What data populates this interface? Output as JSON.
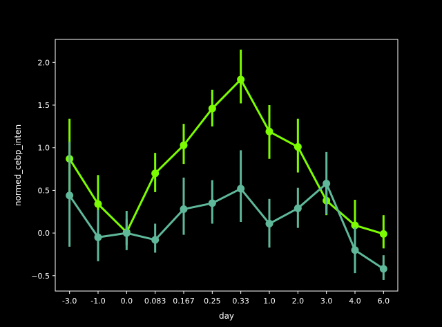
{
  "chart_data": {
    "type": "line",
    "title": "",
    "xlabel": "day",
    "ylabel": "normed_cebp_inten",
    "categories": [
      "-3.0",
      "-1.0",
      "0.0",
      "0.083",
      "0.167",
      "0.25",
      "0.33",
      "1.0",
      "2.0",
      "3.0",
      "4.0",
      "6.0"
    ],
    "ylim": [
      -0.68,
      2.27
    ],
    "yticks": [
      -0.5,
      0.0,
      0.5,
      1.0,
      1.5,
      2.0
    ],
    "ytick_labels": [
      "−0.5",
      "0.0",
      "0.5",
      "1.0",
      "1.5",
      "2.0"
    ],
    "grid": false,
    "legend": "none",
    "series": [
      {
        "color": "#7cfc00",
        "values": [
          0.87,
          0.34,
          0.01,
          0.7,
          1.03,
          1.46,
          1.8,
          1.19,
          1.01,
          0.38,
          0.09,
          -0.01
        ],
        "err_low": [
          0.48,
          0.1,
          -0.14,
          0.48,
          0.81,
          1.25,
          1.52,
          0.87,
          0.71,
          0.21,
          -0.12,
          -0.18
        ],
        "err_high": [
          1.34,
          0.68,
          0.16,
          0.94,
          1.28,
          1.68,
          2.15,
          1.5,
          1.34,
          0.55,
          0.39,
          0.21
        ]
      },
      {
        "color": "#5fb89a",
        "values": [
          0.44,
          -0.05,
          0.0,
          -0.08,
          0.28,
          0.35,
          0.52,
          0.11,
          0.29,
          0.58,
          -0.2,
          -0.42
        ],
        "err_low": [
          -0.16,
          -0.33,
          -0.2,
          -0.23,
          -0.02,
          0.11,
          0.13,
          -0.17,
          0.06,
          0.22,
          -0.47,
          -0.55
        ],
        "err_high": [
          1.07,
          0.27,
          0.26,
          0.11,
          0.65,
          0.62,
          0.97,
          0.4,
          0.53,
          0.95,
          0.07,
          -0.26
        ]
      }
    ]
  }
}
